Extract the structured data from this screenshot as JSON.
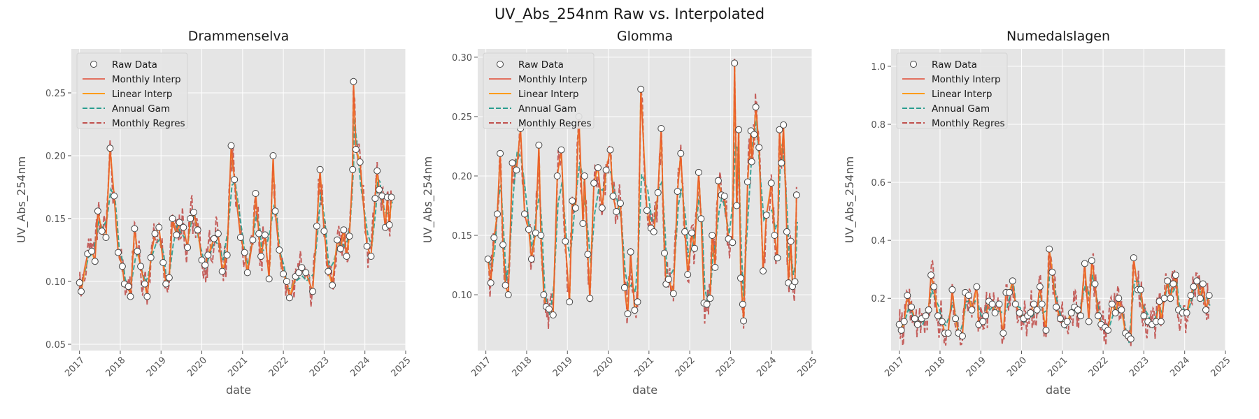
{
  "figure": {
    "title": "UV_Abs_254nm Raw vs. Interpolated"
  },
  "colors": {
    "panel_bg": "#e5e5e5",
    "grid": "#ffffff",
    "text": "#333333",
    "tick": "#555555",
    "raw_face": "#ffffff",
    "raw_edge": "#444444",
    "monthly_interp": "#e24a33",
    "linear_interp": "#ff9c1a",
    "annual_gam": "#2a9d8f",
    "monthly_regres": "#c0504d"
  },
  "chart_data": [
    {
      "type": "line",
      "title": "Drammenselva",
      "xlabel": "date",
      "ylabel": "UV_Abs_254nm",
      "xlim": [
        2016.8,
        2025.0
      ],
      "ylim": [
        0.045,
        0.285
      ],
      "xticks": [
        "2017",
        "2018",
        "2019",
        "2020",
        "2021",
        "2022",
        "2023",
        "2024",
        "2025"
      ],
      "yticks": [
        "0.05",
        "0.10",
        "0.15",
        "0.20",
        "0.25"
      ],
      "grid": true,
      "legend_position": "top-left",
      "legend": [
        "Raw Data",
        "Monthly Interp",
        "Linear Interp",
        "Annual Gam",
        "Monthly Regres"
      ],
      "raw_points": [
        [
          2017.0,
          0.099
        ],
        [
          2017.04,
          0.092
        ],
        [
          2017.2,
          0.122
        ],
        [
          2017.3,
          0.124
        ],
        [
          2017.38,
          0.116
        ],
        [
          2017.45,
          0.156
        ],
        [
          2017.55,
          0.14
        ],
        [
          2017.65,
          0.135
        ],
        [
          2017.75,
          0.206
        ],
        [
          2017.85,
          0.168
        ],
        [
          2017.95,
          0.123
        ],
        [
          2018.05,
          0.112
        ],
        [
          2018.1,
          0.098
        ],
        [
          2018.2,
          0.096
        ],
        [
          2018.25,
          0.088
        ],
        [
          2018.35,
          0.142
        ],
        [
          2018.42,
          0.124
        ],
        [
          2018.5,
          0.112
        ],
        [
          2018.6,
          0.098
        ],
        [
          2018.66,
          0.088
        ],
        [
          2018.75,
          0.119
        ],
        [
          2018.85,
          0.138
        ],
        [
          2018.95,
          0.143
        ],
        [
          2019.05,
          0.115
        ],
        [
          2019.12,
          0.098
        ],
        [
          2019.2,
          0.103
        ],
        [
          2019.28,
          0.15
        ],
        [
          2019.38,
          0.137
        ],
        [
          2019.45,
          0.147
        ],
        [
          2019.55,
          0.143
        ],
        [
          2019.65,
          0.127
        ],
        [
          2019.72,
          0.15
        ],
        [
          2019.8,
          0.155
        ],
        [
          2019.9,
          0.141
        ],
        [
          2020.0,
          0.117
        ],
        [
          2020.08,
          0.113
        ],
        [
          2020.15,
          0.121
        ],
        [
          2020.3,
          0.134
        ],
        [
          2020.4,
          0.138
        ],
        [
          2020.5,
          0.108
        ],
        [
          2020.62,
          0.121
        ],
        [
          2020.72,
          0.208
        ],
        [
          2020.8,
          0.181
        ],
        [
          2020.95,
          0.135
        ],
        [
          2021.05,
          0.123
        ],
        [
          2021.12,
          0.107
        ],
        [
          2021.25,
          0.133
        ],
        [
          2021.32,
          0.17
        ],
        [
          2021.4,
          0.138
        ],
        [
          2021.45,
          0.12
        ],
        [
          2021.55,
          0.137
        ],
        [
          2021.65,
          0.102
        ],
        [
          2021.75,
          0.2
        ],
        [
          2021.8,
          0.156
        ],
        [
          2021.9,
          0.125
        ],
        [
          2022.0,
          0.106
        ],
        [
          2022.08,
          0.1
        ],
        [
          2022.15,
          0.087
        ],
        [
          2022.3,
          0.104
        ],
        [
          2022.38,
          0.107
        ],
        [
          2022.45,
          0.111
        ],
        [
          2022.55,
          0.107
        ],
        [
          2022.72,
          0.092
        ],
        [
          2022.82,
          0.144
        ],
        [
          2022.9,
          0.189
        ],
        [
          2023.0,
          0.14
        ],
        [
          2023.1,
          0.108
        ],
        [
          2023.2,
          0.097
        ],
        [
          2023.32,
          0.133
        ],
        [
          2023.4,
          0.126
        ],
        [
          2023.48,
          0.141
        ],
        [
          2023.55,
          0.12
        ],
        [
          2023.62,
          0.136
        ],
        [
          2023.7,
          0.189
        ],
        [
          2023.72,
          0.259
        ],
        [
          2023.78,
          0.205
        ],
        [
          2023.88,
          0.195
        ],
        [
          2024.05,
          0.128
        ],
        [
          2024.15,
          0.12
        ],
        [
          2024.25,
          0.166
        ],
        [
          2024.3,
          0.188
        ],
        [
          2024.35,
          0.173
        ],
        [
          2024.42,
          0.168
        ],
        [
          2024.5,
          0.143
        ],
        [
          2024.55,
          0.167
        ],
        [
          2024.6,
          0.145
        ],
        [
          2024.65,
          0.167
        ]
      ]
    },
    {
      "type": "line",
      "title": "Glomma",
      "xlabel": "date",
      "ylabel": "UV_Abs_254nm",
      "xlim": [
        2016.8,
        2025.0
      ],
      "ylim": [
        0.053,
        0.307
      ],
      "xticks": [
        "2017",
        "2018",
        "2019",
        "2020",
        "2021",
        "2022",
        "2023",
        "2024",
        "2025"
      ],
      "yticks": [
        "0.10",
        "0.15",
        "0.20",
        "0.25",
        "0.30"
      ],
      "grid": true,
      "legend_position": "top-left",
      "legend": [
        "Raw Data",
        "Monthly Interp",
        "Linear Interp",
        "Annual Gam",
        "Monthly Regres"
      ],
      "raw_points": [
        [
          2017.05,
          0.13
        ],
        [
          2017.12,
          0.11
        ],
        [
          2017.2,
          0.148
        ],
        [
          2017.28,
          0.168
        ],
        [
          2017.35,
          0.219
        ],
        [
          2017.42,
          0.142
        ],
        [
          2017.48,
          0.108
        ],
        [
          2017.55,
          0.1
        ],
        [
          2017.65,
          0.211
        ],
        [
          2017.75,
          0.205
        ],
        [
          2017.85,
          0.24
        ],
        [
          2017.95,
          0.168
        ],
        [
          2018.05,
          0.155
        ],
        [
          2018.12,
          0.13
        ],
        [
          2018.22,
          0.152
        ],
        [
          2018.3,
          0.226
        ],
        [
          2018.35,
          0.15
        ],
        [
          2018.42,
          0.1
        ],
        [
          2018.48,
          0.09
        ],
        [
          2018.55,
          0.088
        ],
        [
          2018.65,
          0.083
        ],
        [
          2018.75,
          0.2
        ],
        [
          2018.85,
          0.222
        ],
        [
          2018.95,
          0.145
        ],
        [
          2019.05,
          0.094
        ],
        [
          2019.12,
          0.179
        ],
        [
          2019.2,
          0.173
        ],
        [
          2019.28,
          0.25
        ],
        [
          2019.38,
          0.16
        ],
        [
          2019.42,
          0.2
        ],
        [
          2019.5,
          0.134
        ],
        [
          2019.55,
          0.097
        ],
        [
          2019.65,
          0.194
        ],
        [
          2019.75,
          0.207
        ],
        [
          2019.85,
          0.173
        ],
        [
          2019.95,
          0.205
        ],
        [
          2020.05,
          0.222
        ],
        [
          2020.12,
          0.183
        ],
        [
          2020.2,
          0.17
        ],
        [
          2020.3,
          0.177
        ],
        [
          2020.4,
          0.106
        ],
        [
          2020.48,
          0.084
        ],
        [
          2020.55,
          0.136
        ],
        [
          2020.65,
          0.087
        ],
        [
          2020.72,
          0.094
        ],
        [
          2020.8,
          0.273
        ],
        [
          2020.95,
          0.171
        ],
        [
          2021.05,
          0.156
        ],
        [
          2021.12,
          0.153
        ],
        [
          2021.22,
          0.186
        ],
        [
          2021.3,
          0.24
        ],
        [
          2021.38,
          0.135
        ],
        [
          2021.42,
          0.109
        ],
        [
          2021.48,
          0.113
        ],
        [
          2021.6,
          0.101
        ],
        [
          2021.7,
          0.187
        ],
        [
          2021.78,
          0.219
        ],
        [
          2021.88,
          0.153
        ],
        [
          2021.95,
          0.117
        ],
        [
          2022.05,
          0.152
        ],
        [
          2022.12,
          0.139
        ],
        [
          2022.22,
          0.203
        ],
        [
          2022.28,
          0.164
        ],
        [
          2022.35,
          0.093
        ],
        [
          2022.42,
          0.092
        ],
        [
          2022.5,
          0.097
        ],
        [
          2022.55,
          0.15
        ],
        [
          2022.62,
          0.123
        ],
        [
          2022.7,
          0.196
        ],
        [
          2022.78,
          0.184
        ],
        [
          2022.85,
          0.183
        ],
        [
          2022.95,
          0.147
        ],
        [
          2023.05,
          0.144
        ],
        [
          2023.15,
          0.175
        ],
        [
          2023.1,
          0.295
        ],
        [
          2023.2,
          0.239
        ],
        [
          2023.25,
          0.114
        ],
        [
          2023.3,
          0.092
        ],
        [
          2023.32,
          0.078
        ],
        [
          2023.42,
          0.195
        ],
        [
          2023.5,
          0.238
        ],
        [
          2023.52,
          0.212
        ],
        [
          2023.58,
          0.235
        ],
        [
          2023.62,
          0.258
        ],
        [
          2023.7,
          0.224
        ],
        [
          2023.8,
          0.12
        ],
        [
          2023.88,
          0.167
        ],
        [
          2024.0,
          0.194
        ],
        [
          2024.08,
          0.15
        ],
        [
          2024.15,
          0.131
        ],
        [
          2024.2,
          0.239
        ],
        [
          2024.25,
          0.211
        ],
        [
          2024.3,
          0.243
        ],
        [
          2024.38,
          0.153
        ],
        [
          2024.42,
          0.11
        ],
        [
          2024.48,
          0.145
        ],
        [
          2024.52,
          0.107
        ],
        [
          2024.58,
          0.111
        ],
        [
          2024.62,
          0.184
        ]
      ]
    },
    {
      "type": "line",
      "title": "Numedalslagen",
      "xlabel": "date",
      "ylabel": "UV_Abs_254nm",
      "xlim": [
        2016.8,
        2025.0
      ],
      "ylim": [
        0.02,
        1.06
      ],
      "xticks": [
        "2017",
        "2018",
        "2019",
        "2020",
        "2021",
        "2022",
        "2023",
        "2024",
        "2025"
      ],
      "yticks": [
        "0.2",
        "0.4",
        "0.6",
        "0.8",
        "1.0"
      ],
      "grid": true,
      "legend_position": "top-left",
      "legend": [
        "Raw Data",
        "Monthly Interp",
        "Linear Interp",
        "Annual Gam",
        "Monthly Regres"
      ],
      "raw_points": [
        [
          2017.0,
          0.11
        ],
        [
          2017.05,
          0.09
        ],
        [
          2017.12,
          0.12
        ],
        [
          2017.2,
          0.21
        ],
        [
          2017.3,
          0.17
        ],
        [
          2017.38,
          0.13
        ],
        [
          2017.45,
          0.11
        ],
        [
          2017.55,
          0.13
        ],
        [
          2017.65,
          0.14
        ],
        [
          2017.72,
          0.16
        ],
        [
          2017.78,
          0.28
        ],
        [
          2017.85,
          0.24
        ],
        [
          2017.95,
          0.14
        ],
        [
          2018.05,
          0.12
        ],
        [
          2018.12,
          0.08
        ],
        [
          2018.2,
          0.08
        ],
        [
          2018.3,
          0.23
        ],
        [
          2018.38,
          0.13
        ],
        [
          2018.45,
          0.08
        ],
        [
          2018.55,
          0.07
        ],
        [
          2018.62,
          0.22
        ],
        [
          2018.7,
          0.21
        ],
        [
          2018.78,
          0.16
        ],
        [
          2018.9,
          0.24
        ],
        [
          2018.95,
          0.11
        ],
        [
          2019.05,
          0.12
        ],
        [
          2019.12,
          0.14
        ],
        [
          2019.2,
          0.19
        ],
        [
          2019.28,
          0.18
        ],
        [
          2019.35,
          0.15
        ],
        [
          2019.45,
          0.18
        ],
        [
          2019.55,
          0.08
        ],
        [
          2019.62,
          0.22
        ],
        [
          2019.7,
          0.22
        ],
        [
          2019.78,
          0.26
        ],
        [
          2019.85,
          0.18
        ],
        [
          2019.95,
          0.15
        ],
        [
          2020.05,
          0.13
        ],
        [
          2020.15,
          0.14
        ],
        [
          2020.22,
          0.15
        ],
        [
          2020.3,
          0.18
        ],
        [
          2020.38,
          0.16
        ],
        [
          2020.45,
          0.24
        ],
        [
          2020.5,
          0.18
        ],
        [
          2020.6,
          0.09
        ],
        [
          2020.68,
          0.37
        ],
        [
          2020.75,
          0.29
        ],
        [
          2020.85,
          0.17
        ],
        [
          2020.95,
          0.13
        ],
        [
          2021.05,
          0.11
        ],
        [
          2021.12,
          0.12
        ],
        [
          2021.22,
          0.15
        ],
        [
          2021.3,
          0.17
        ],
        [
          2021.38,
          0.16
        ],
        [
          2021.45,
          0.14
        ],
        [
          2021.55,
          0.32
        ],
        [
          2021.65,
          0.12
        ],
        [
          2021.72,
          0.33
        ],
        [
          2021.8,
          0.25
        ],
        [
          2021.88,
          0.14
        ],
        [
          2021.95,
          0.11
        ],
        [
          2022.05,
          0.1
        ],
        [
          2022.12,
          0.09
        ],
        [
          2022.22,
          0.18
        ],
        [
          2022.3,
          0.15
        ],
        [
          2022.38,
          0.2
        ],
        [
          2022.45,
          0.16
        ],
        [
          2022.55,
          0.08
        ],
        [
          2022.62,
          0.07
        ],
        [
          2022.68,
          0.06
        ],
        [
          2022.75,
          0.34
        ],
        [
          2022.85,
          0.23
        ],
        [
          2022.92,
          0.23
        ],
        [
          2023.0,
          0.14
        ],
        [
          2023.1,
          0.12
        ],
        [
          2023.2,
          0.11
        ],
        [
          2023.3,
          0.12
        ],
        [
          2023.38,
          0.19
        ],
        [
          2023.42,
          0.12
        ],
        [
          2023.5,
          0.2
        ],
        [
          2023.58,
          0.26
        ],
        [
          2023.65,
          0.2
        ],
        [
          2023.72,
          0.25
        ],
        [
          2023.78,
          0.28
        ],
        [
          2023.85,
          0.16
        ],
        [
          2023.95,
          0.15
        ],
        [
          2024.05,
          0.15
        ],
        [
          2024.15,
          0.21
        ],
        [
          2024.22,
          0.24
        ],
        [
          2024.3,
          0.26
        ],
        [
          2024.38,
          0.2
        ],
        [
          2024.45,
          0.25
        ],
        [
          2024.52,
          0.16
        ],
        [
          2024.6,
          0.21
        ]
      ]
    }
  ]
}
